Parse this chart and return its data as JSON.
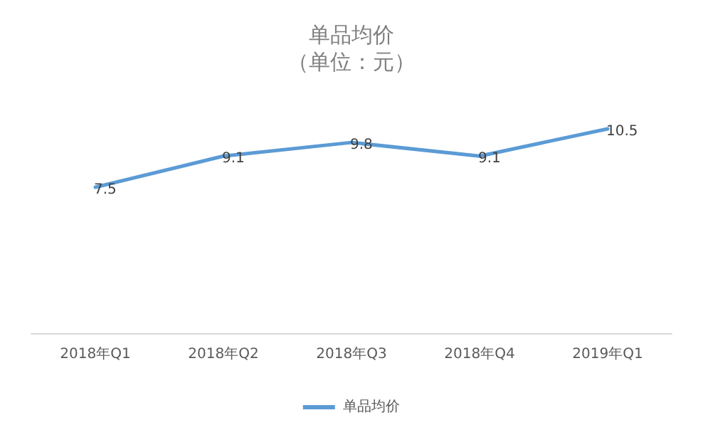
{
  "chart_data": {
    "type": "line",
    "title": "单品均价",
    "subtitle": "（单位：元）",
    "categories": [
      "2018年Q1",
      "2018年Q2",
      "2018年Q3",
      "2018年Q4",
      "2019年Q1"
    ],
    "series": [
      {
        "name": "单品均价",
        "color": "#5b9bd5",
        "values": [
          7.5,
          9.1,
          9.8,
          9.1,
          10.5
        ]
      }
    ],
    "data_labels": true,
    "grid": false,
    "legend": "bottom",
    "marker": "none",
    "line_style": "solid",
    "tick_labels": "x"
  }
}
